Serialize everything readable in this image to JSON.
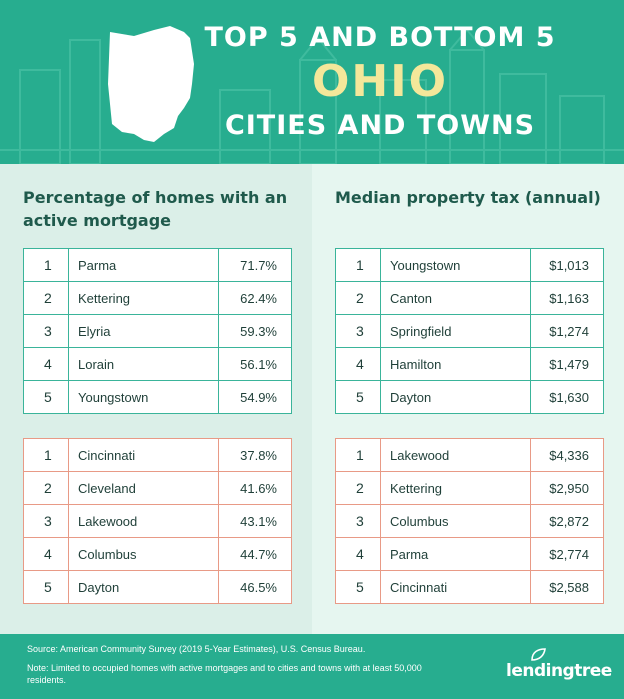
{
  "header": {
    "line1": "TOP 5 AND BOTTOM 5",
    "line2": "OHIO",
    "line3": "CITIES AND TOWNS",
    "icon": "ohio-state-shape-icon"
  },
  "left_panel": {
    "title": "Percentage of homes with an active mortgage",
    "top": [
      {
        "rank": "1",
        "city": "Parma",
        "value": "71.7%"
      },
      {
        "rank": "2",
        "city": "Kettering",
        "value": "62.4%"
      },
      {
        "rank": "3",
        "city": "Elyria",
        "value": "59.3%"
      },
      {
        "rank": "4",
        "city": "Lorain",
        "value": "56.1%"
      },
      {
        "rank": "5",
        "city": "Youngstown",
        "value": "54.9%"
      }
    ],
    "bottom": [
      {
        "rank": "1",
        "city": "Cincinnati",
        "value": "37.8%"
      },
      {
        "rank": "2",
        "city": "Cleveland",
        "value": "41.6%"
      },
      {
        "rank": "3",
        "city": "Lakewood",
        "value": "43.1%"
      },
      {
        "rank": "4",
        "city": "Columbus",
        "value": "44.7%"
      },
      {
        "rank": "5",
        "city": "Dayton",
        "value": "46.5%"
      }
    ]
  },
  "right_panel": {
    "title": "Median property tax (annual)",
    "top": [
      {
        "rank": "1",
        "city": "Youngstown",
        "value": "$1,013"
      },
      {
        "rank": "2",
        "city": "Canton",
        "value": "$1,163"
      },
      {
        "rank": "3",
        "city": "Springfield",
        "value": "$1,274"
      },
      {
        "rank": "4",
        "city": "Hamilton",
        "value": "$1,479"
      },
      {
        "rank": "5",
        "city": "Dayton",
        "value": "$1,630"
      }
    ],
    "bottom": [
      {
        "rank": "1",
        "city": "Lakewood",
        "value": "$4,336"
      },
      {
        "rank": "2",
        "city": "Kettering",
        "value": "$2,950"
      },
      {
        "rank": "3",
        "city": "Columbus",
        "value": "$2,872"
      },
      {
        "rank": "4",
        "city": "Parma",
        "value": "$2,774"
      },
      {
        "rank": "5",
        "city": "Cincinnati",
        "value": "$2,588"
      }
    ]
  },
  "footer": {
    "source": "Source: American Community Survey (2019 5-Year Estimates), U.S. Census Bureau.",
    "note": "Note: Limited to occupied homes with active mortgages and to cities and towns with at least 50,000 residents.",
    "brand": "lendingtree",
    "brand_icon": "leaf-icon"
  },
  "colors": {
    "header_bg": "#27ad8f",
    "accent_yellow": "#f4e79a",
    "top_border": "#3ab49a",
    "bottom_border": "#e89a86"
  }
}
